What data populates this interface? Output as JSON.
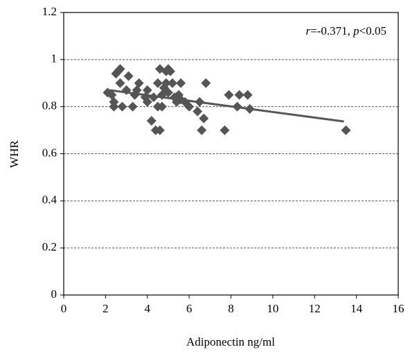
{
  "chart_data": {
    "type": "scatter",
    "x_label": "Adiponectin ng/ml",
    "y_label": "WHR",
    "annotation": {
      "parts": [
        "r",
        "=-0.371, ",
        "p",
        "<0.05"
      ]
    },
    "xlim": [
      0,
      16
    ],
    "xticks": [
      0,
      2,
      4,
      6,
      8,
      10,
      12,
      14,
      16
    ],
    "ylim": [
      0,
      1.2
    ],
    "yticks": [
      0,
      0.2,
      0.4,
      0.6,
      0.8,
      1,
      1.2
    ],
    "grid": true,
    "color": "#555555",
    "series": [
      {
        "name": "WHR",
        "color": "#555555",
        "x": [
          2.1,
          2.3,
          2.4,
          2.4,
          2.5,
          2.6,
          2.7,
          2.7,
          2.8,
          3.0,
          3.1,
          3.3,
          3.4,
          3.5,
          3.6,
          3.9,
          4.0,
          4.0,
          4.2,
          4.3,
          4.4,
          4.5,
          4.5,
          4.6,
          4.6,
          4.7,
          4.7,
          4.8,
          4.9,
          4.9,
          5.0,
          5.0,
          5.1,
          5.2,
          5.3,
          5.4,
          5.5,
          5.6,
          5.6,
          5.8,
          6.0,
          6.4,
          6.5,
          6.6,
          6.7,
          6.8,
          7.7,
          7.9,
          8.3,
          8.4,
          8.8,
          8.9,
          13.5
        ],
        "values": [
          0.86,
          0.85,
          0.82,
          0.8,
          0.94,
          0.95,
          0.96,
          0.9,
          0.8,
          0.87,
          0.93,
          0.8,
          0.85,
          0.87,
          0.9,
          0.84,
          0.87,
          0.82,
          0.74,
          0.84,
          0.7,
          0.9,
          0.8,
          0.96,
          0.7,
          0.8,
          0.85,
          0.88,
          0.95,
          0.9,
          0.96,
          0.86,
          0.95,
          0.9,
          0.84,
          0.82,
          0.85,
          0.9,
          0.83,
          0.82,
          0.8,
          0.78,
          0.82,
          0.7,
          0.75,
          0.9,
          0.7,
          0.85,
          0.8,
          0.85,
          0.85,
          0.79,
          0.7
        ]
      }
    ],
    "trendline": {
      "x": [
        2.2,
        13.4
      ],
      "y": [
        0.87,
        0.737
      ],
      "color": "#555555"
    }
  }
}
